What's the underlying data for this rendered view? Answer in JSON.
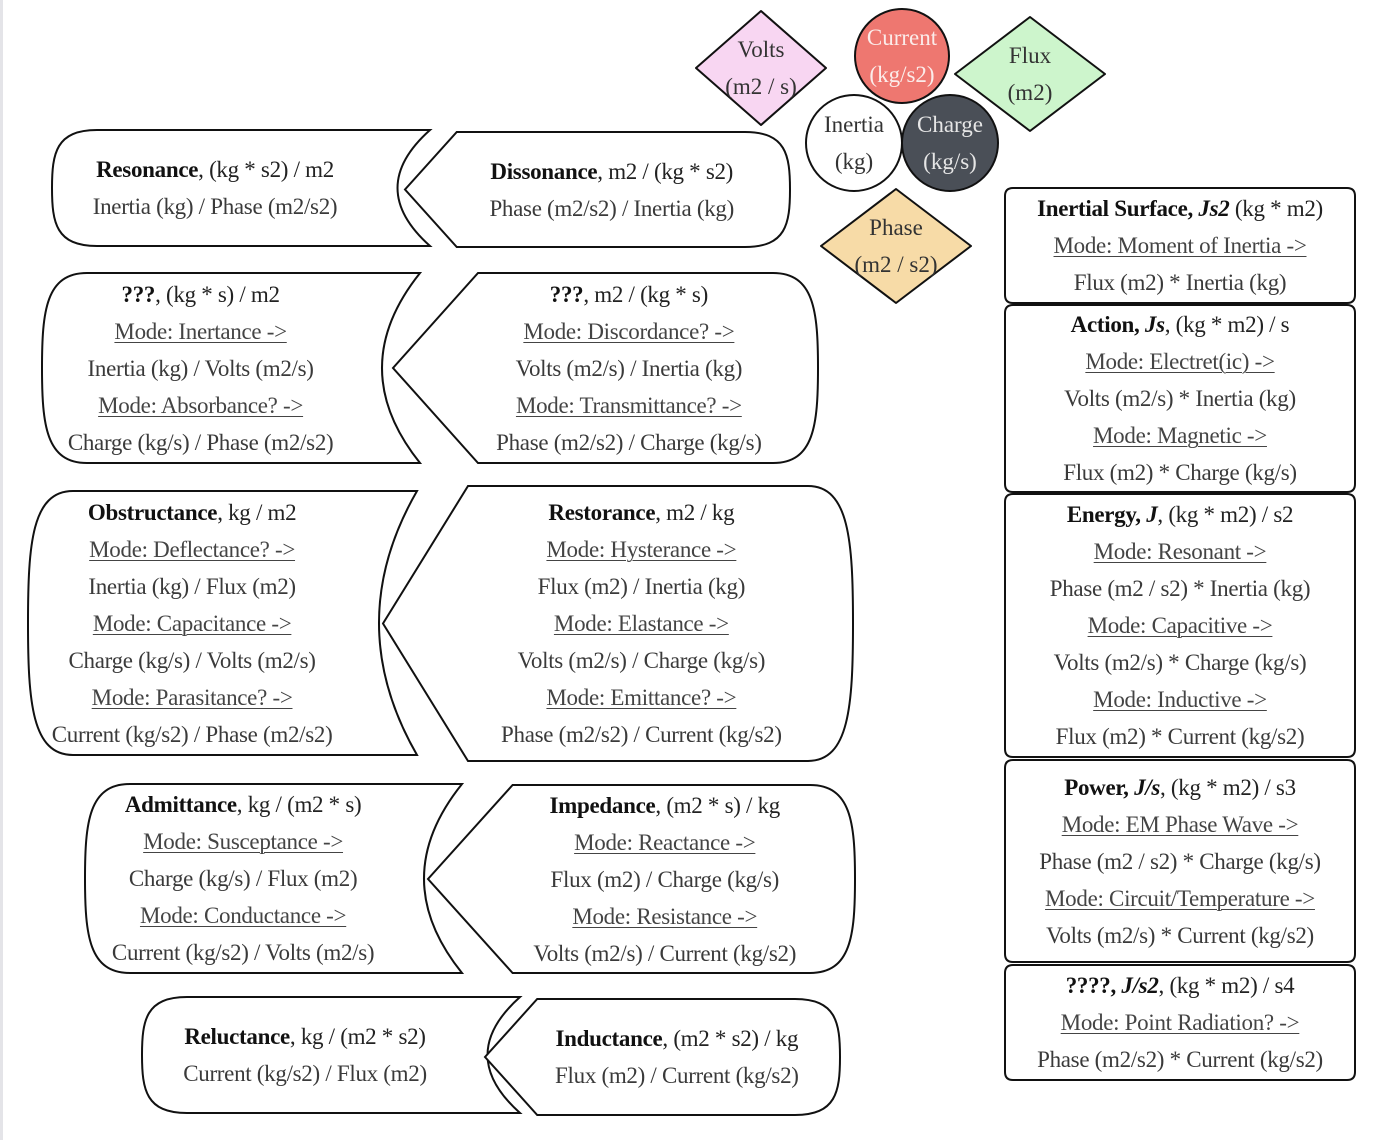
{
  "nodes": [
    {
      "id": "volts",
      "label": "Volts",
      "unit": "(m2 / s)",
      "shape": "diamond",
      "fill": "#f8d6f2",
      "text": "#333333"
    },
    {
      "id": "current",
      "label": "Current",
      "unit": "(kg/s2)",
      "shape": "circle",
      "fill": "#ee7770",
      "text": "#fbecea"
    },
    {
      "id": "flux",
      "label": "Flux",
      "unit": "(m2)",
      "shape": "diamond",
      "fill": "#cdf5cc",
      "text": "#333333"
    },
    {
      "id": "inertia",
      "label": "Inertia",
      "unit": "(kg)",
      "shape": "circle",
      "fill": "#ffffff",
      "text": "#333333"
    },
    {
      "id": "charge",
      "label": "Charge",
      "unit": "(kg/s)",
      "shape": "circle",
      "fill": "#4a4f57",
      "text": "#e6e6e6"
    },
    {
      "id": "phase",
      "label": "Phase",
      "unit": "(m2 / s2)",
      "shape": "diamond",
      "fill": "#f7dba7",
      "text": "#333333"
    }
  ],
  "shapes": [
    {
      "id": "resonance",
      "lines": [
        {
          "t": "title",
          "name": "Resonance",
          "sym": "",
          "rest": ", (kg * s2) / m2"
        },
        {
          "t": "text",
          "text": "Inertia (kg) / Phase (m2/s2)"
        }
      ]
    },
    {
      "id": "dissonance",
      "lines": [
        {
          "t": "title",
          "name": "Dissonance",
          "sym": "",
          "rest": ", m2 / (kg * s2)"
        },
        {
          "t": "text",
          "text": "Phase (m2/s2) / Inertia (kg)"
        }
      ]
    },
    {
      "id": "unknown-left",
      "lines": [
        {
          "t": "title",
          "name": "???",
          "sym": "",
          "rest": ", (kg * s) / m2"
        },
        {
          "t": "mode",
          "text": "Mode: Inertance ->"
        },
        {
          "t": "text",
          "text": "Inertia (kg) / Volts (m2/s)"
        },
        {
          "t": "mode",
          "text": "Mode: Absorbance? ->"
        },
        {
          "t": "text",
          "text": "Charge (kg/s) / Phase (m2/s2)"
        }
      ]
    },
    {
      "id": "unknown-right",
      "lines": [
        {
          "t": "title",
          "name": "???",
          "sym": "",
          "rest": ", m2 / (kg * s)"
        },
        {
          "t": "mode",
          "text": "Mode: Discordance? ->"
        },
        {
          "t": "text",
          "text": "Volts (m2/s) / Inertia (kg)"
        },
        {
          "t": "mode",
          "text": "Mode: Transmittance? ->"
        },
        {
          "t": "text",
          "text": "Phase (m2/s2) / Charge (kg/s)"
        }
      ]
    },
    {
      "id": "obstructance",
      "lines": [
        {
          "t": "title",
          "name": "Obstructance",
          "sym": "",
          "rest": ", kg / m2"
        },
        {
          "t": "mode",
          "text": "Mode: Deflectance? ->"
        },
        {
          "t": "text",
          "text": "Inertia (kg) / Flux (m2)"
        },
        {
          "t": "mode",
          "text": "Mode: Capacitance ->"
        },
        {
          "t": "text",
          "text": "Charge (kg/s) / Volts (m2/s)"
        },
        {
          "t": "mode",
          "text": "Mode: Parasitance? ->"
        },
        {
          "t": "text",
          "text": "Current (kg/s2) / Phase (m2/s2)"
        }
      ]
    },
    {
      "id": "restorance",
      "lines": [
        {
          "t": "title",
          "name": "Restorance",
          "sym": "",
          "rest": ", m2 / kg"
        },
        {
          "t": "mode",
          "text": "Mode: Hysterance ->"
        },
        {
          "t": "text",
          "text": "Flux (m2) / Inertia (kg)"
        },
        {
          "t": "mode",
          "text": "Mode: Elastance ->"
        },
        {
          "t": "text",
          "text": "Volts (m2/s) / Charge (kg/s)"
        },
        {
          "t": "mode",
          "text": "Mode: Emittance? ->"
        },
        {
          "t": "text",
          "text": "Phase (m2/s2) / Current (kg/s2)"
        }
      ]
    },
    {
      "id": "admittance",
      "lines": [
        {
          "t": "title",
          "name": "Admittance",
          "sym": "",
          "rest": ", kg / (m2 * s)"
        },
        {
          "t": "mode",
          "text": "Mode: Susceptance ->"
        },
        {
          "t": "text",
          "text": "Charge (kg/s) / Flux (m2)"
        },
        {
          "t": "mode",
          "text": "Mode: Conductance ->"
        },
        {
          "t": "text",
          "text": "Current (kg/s2) / Volts (m2/s)"
        }
      ]
    },
    {
      "id": "impedance",
      "lines": [
        {
          "t": "title",
          "name": "Impedance",
          "sym": "",
          "rest": ", (m2 * s) / kg"
        },
        {
          "t": "mode",
          "text": "Mode: Reactance ->"
        },
        {
          "t": "text",
          "text": "Flux (m2) / Charge (kg/s)"
        },
        {
          "t": "mode",
          "text": "Mode: Resistance ->"
        },
        {
          "t": "text",
          "text": "Volts (m2/s) / Current (kg/s2)"
        }
      ]
    },
    {
      "id": "reluctance",
      "lines": [
        {
          "t": "title",
          "name": "Reluctance",
          "sym": "",
          "rest": ", kg / (m2 * s2)"
        },
        {
          "t": "text",
          "text": "Current (kg/s2) / Flux (m2)"
        }
      ]
    },
    {
      "id": "inductance",
      "lines": [
        {
          "t": "title",
          "name": "Inductance",
          "sym": "",
          "rest": ", (m2 * s2) / kg"
        },
        {
          "t": "text",
          "text": "Flux (m2) / Current (kg/s2)"
        }
      ]
    },
    {
      "id": "inertial-surface",
      "lines": [
        {
          "t": "title",
          "name": "Inertial Surface, ",
          "sym": "Js2",
          "rest": " (kg * m2)"
        },
        {
          "t": "mode",
          "text": "Mode: Moment of Inertia ->"
        },
        {
          "t": "text",
          "text": "Flux (m2) * Inertia (kg)"
        }
      ]
    },
    {
      "id": "action",
      "lines": [
        {
          "t": "title",
          "name": "Action, ",
          "sym": "Js",
          "rest": ", (kg * m2) / s"
        },
        {
          "t": "mode",
          "text": "Mode: Electret(ic) ->"
        },
        {
          "t": "text",
          "text": "Volts (m2/s) * Inertia (kg)"
        },
        {
          "t": "mode",
          "text": "Mode: Magnetic ->"
        },
        {
          "t": "text",
          "text": "Flux (m2) * Charge (kg/s)"
        }
      ]
    },
    {
      "id": "energy",
      "lines": [
        {
          "t": "title",
          "name": "Energy, ",
          "sym": "J",
          "rest": ", (kg * m2) / s2"
        },
        {
          "t": "mode",
          "text": "Mode: Resonant ->"
        },
        {
          "t": "text",
          "text": "Phase (m2 / s2) * Inertia (kg)"
        },
        {
          "t": "mode",
          "text": "Mode: Capacitive ->"
        },
        {
          "t": "text",
          "text": "Volts (m2/s) * Charge (kg/s)"
        },
        {
          "t": "mode",
          "text": "Mode: Inductive ->"
        },
        {
          "t": "text",
          "text": "Flux (m2) * Current (kg/s2)"
        }
      ]
    },
    {
      "id": "power",
      "lines": [
        {
          "t": "title",
          "name": "Power, ",
          "sym": "J/s",
          "rest": ", (kg * m2) / s3"
        },
        {
          "t": "mode",
          "text": "Mode: EM Phase Wave ->"
        },
        {
          "t": "text",
          "text": "Phase (m2 / s2) * Charge (kg/s)"
        },
        {
          "t": "mode",
          "text": "Mode: Circuit/Temperature ->"
        },
        {
          "t": "text",
          "text": "Volts (m2/s) * Current (kg/s2)"
        }
      ]
    },
    {
      "id": "unknown-js2",
      "lines": [
        {
          "t": "title",
          "name": "????, ",
          "sym": "J/s2",
          "rest": ", (kg * m2) / s4"
        },
        {
          "t": "mode",
          "text": "Mode: Point Radiation? ->"
        },
        {
          "t": "text",
          "text": "Phase (m2/s2) * Current (kg/s2)"
        }
      ]
    }
  ]
}
